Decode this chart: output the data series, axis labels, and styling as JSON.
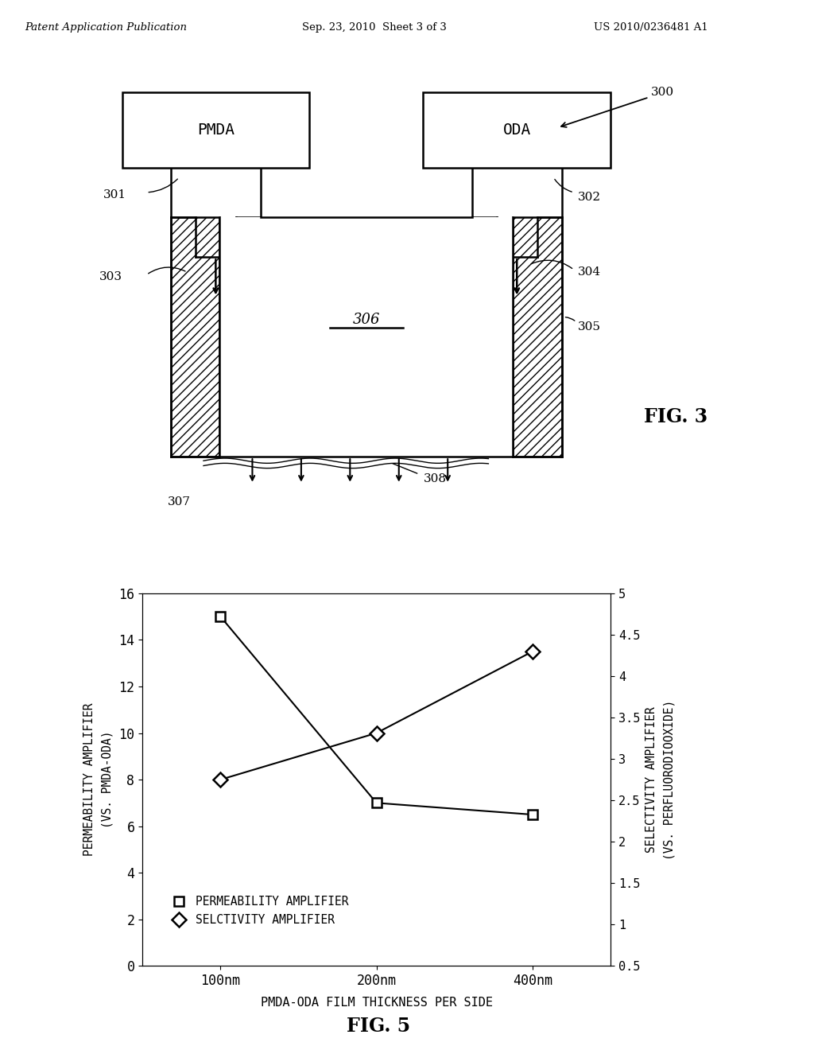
{
  "header_left": "Patent Application Publication",
  "header_mid": "Sep. 23, 2010  Sheet 3 of 3",
  "header_right": "US 2010/0236481 A1",
  "fig3_label": "FIG. 3",
  "fig5_label": "FIG. 5",
  "bg_color": "#ffffff",
  "line_color": "#000000",
  "plot_data": {
    "x_labels": [
      "100nm",
      "200nm",
      "400nm"
    ],
    "x_values": [
      1,
      2,
      3
    ],
    "permeability": [
      15,
      7,
      6.5
    ],
    "selectivity": [
      8,
      10,
      13.5
    ],
    "ylabel_left_line1": "PERMEABILITY AMPLIFIER",
    "ylabel_left_line2": "(VS. PMDA-ODA)",
    "ylabel_right_line1": "SELECTIVITY AMPLIFIER",
    "ylabel_right_line2": "(VS. PERFLUORODIOOXIDE)",
    "xlabel": "PMDA-ODA FILM THICKNESS PER SIDE",
    "ylim_left": [
      0,
      16
    ],
    "ylim_right": [
      0.5,
      5
    ],
    "yticks_left": [
      0,
      2,
      4,
      6,
      8,
      10,
      12,
      14,
      16
    ],
    "yticks_right": [
      0.5,
      1.0,
      1.5,
      2.0,
      2.5,
      3.0,
      3.5,
      4.0,
      4.5,
      5.0
    ],
    "ytick_labels_right": [
      "0.5",
      "1",
      "1.5",
      "2",
      "2.5",
      "3",
      "3.5",
      "4",
      "4.5",
      "5"
    ],
    "legend_permeability": "PERMEABILITY AMPLIFIER",
    "legend_selectivity": "SELCTIVITY AMPLIFIER"
  }
}
